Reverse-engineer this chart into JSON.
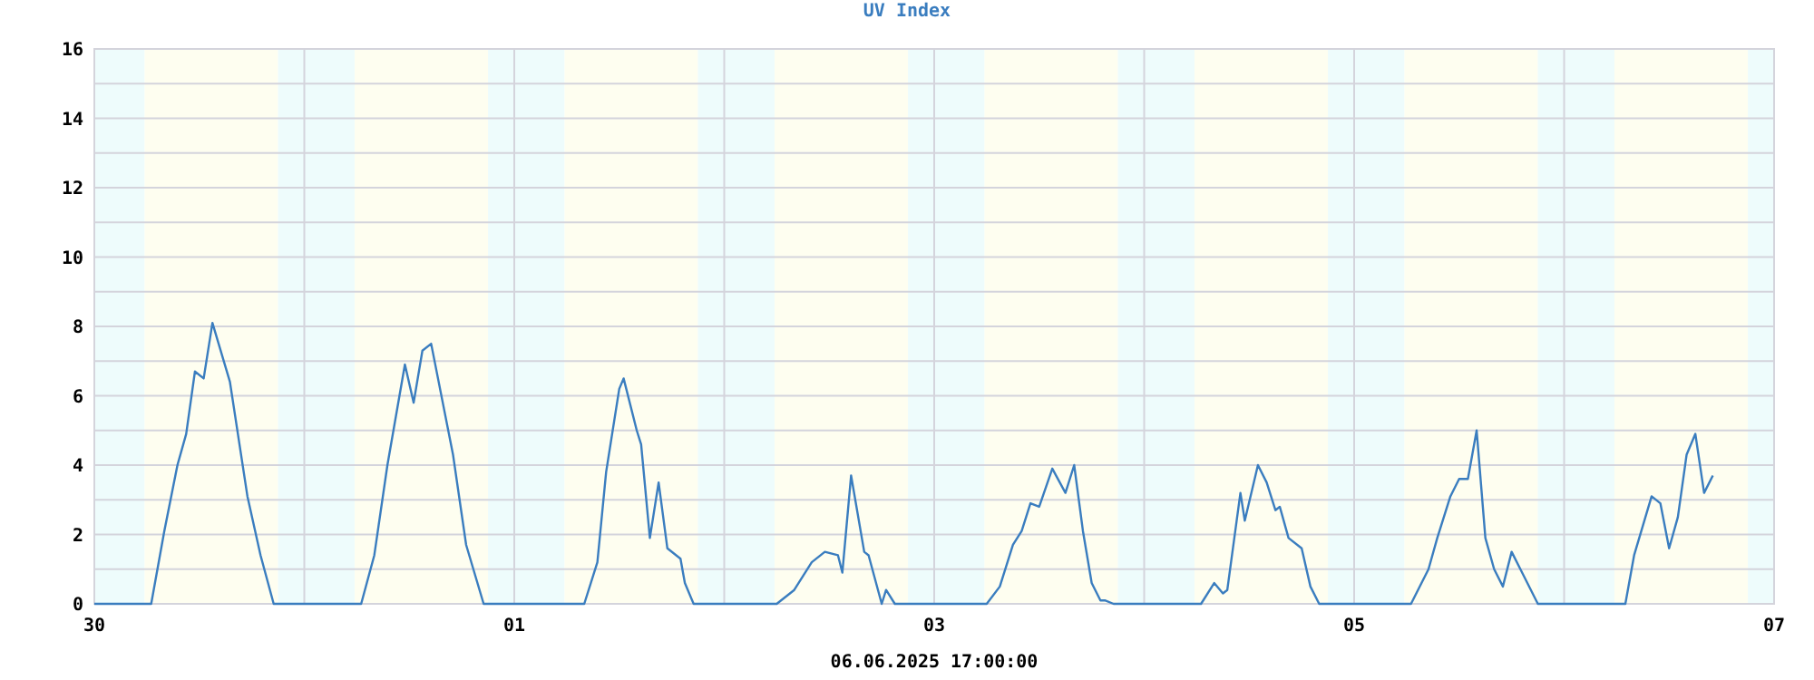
{
  "chart_data": {
    "type": "line",
    "title": "UV Index",
    "annotations": [
      "06.06.2025 17:00:00"
    ],
    "x": [
      "2025-05-30T00:00",
      "2025-05-30T06:30",
      "2025-05-30T08:00",
      "2025-05-30T09:30",
      "2025-05-30T10:30",
      "2025-05-30T11:30",
      "2025-05-30T12:30",
      "2025-05-30T13:30",
      "2025-05-30T15:30",
      "2025-05-30T17:30",
      "2025-05-30T19:00",
      "2025-05-30T20:30",
      "2025-05-31T06:30",
      "2025-05-31T08:00",
      "2025-05-31T09:30",
      "2025-05-31T11:30",
      "2025-05-31T12:30",
      "2025-05-31T13:30",
      "2025-05-31T14:30",
      "2025-05-31T17:00",
      "2025-05-31T18:30",
      "2025-05-31T20:30",
      "2025-06-01T08:00",
      "2025-06-01T09:30",
      "2025-06-01T10:30",
      "2025-06-01T12:00",
      "2025-06-01T12:30",
      "2025-06-01T14:00",
      "2025-06-01T14:30",
      "2025-06-01T15:30",
      "2025-06-01T16:30",
      "2025-06-01T17:30",
      "2025-06-01T19:00",
      "2025-06-01T19:30",
      "2025-06-01T20:30",
      "2025-06-02T06:00",
      "2025-06-02T08:00",
      "2025-06-02T10:00",
      "2025-06-02T11:30",
      "2025-06-02T13:00",
      "2025-06-02T13:30",
      "2025-06-02T14:30",
      "2025-06-02T16:00",
      "2025-06-02T16:30",
      "2025-06-02T18:00",
      "2025-06-02T18:30",
      "2025-06-02T19:30",
      "2025-06-03T06:00",
      "2025-06-03T07:30",
      "2025-06-03T09:00",
      "2025-06-03T10:00",
      "2025-06-03T11:00",
      "2025-06-03T12:00",
      "2025-06-03T13:30",
      "2025-06-03T15:00",
      "2025-06-03T16:00",
      "2025-06-03T17:00",
      "2025-06-03T18:00",
      "2025-06-03T19:00",
      "2025-06-03T19:30",
      "2025-06-03T20:30",
      "2025-06-04T06:30",
      "2025-06-04T08:00",
      "2025-06-04T09:00",
      "2025-06-04T09:30",
      "2025-06-04T11:00",
      "2025-06-04T11:30",
      "2025-06-04T13:00",
      "2025-06-04T14:00",
      "2025-06-04T15:00",
      "2025-06-04T15:30",
      "2025-06-04T16:30",
      "2025-06-04T18:00",
      "2025-06-04T19:00",
      "2025-06-04T20:00",
      "2025-06-05T06:30",
      "2025-06-05T08:30",
      "2025-06-05T09:30",
      "2025-06-05T11:00",
      "2025-06-05T12:00",
      "2025-06-05T13:00",
      "2025-06-05T14:00",
      "2025-06-05T15:00",
      "2025-06-05T16:00",
      "2025-06-05T17:00",
      "2025-06-05T18:00",
      "2025-06-05T19:00",
      "2025-06-05T21:00",
      "2025-06-06T07:00",
      "2025-06-06T08:00",
      "2025-06-06T10:00",
      "2025-06-06T11:00",
      "2025-06-06T12:00",
      "2025-06-06T13:00",
      "2025-06-06T14:00",
      "2025-06-06T15:00",
      "2025-06-06T16:00",
      "2025-06-06T17:00"
    ],
    "series": [
      {
        "color": "#3a7dbf",
        "values": [
          0,
          0,
          2.1,
          4.0,
          4.9,
          6.7,
          6.5,
          8.1,
          6.4,
          3.1,
          1.4,
          0,
          0,
          1.4,
          4.0,
          6.9,
          5.8,
          7.3,
          7.5,
          4.3,
          1.7,
          0,
          0,
          1.2,
          3.8,
          6.2,
          6.5,
          5.0,
          4.6,
          1.9,
          3.5,
          1.6,
          1.3,
          0.6,
          0,
          0,
          0.4,
          1.2,
          1.5,
          1.4,
          0.9,
          3.7,
          1.5,
          1.4,
          0,
          0.4,
          0,
          0,
          0.5,
          1.7,
          2.1,
          2.9,
          2.8,
          3.9,
          3.2,
          4.0,
          2.1,
          0.6,
          0.1,
          0.1,
          0,
          0,
          0.6,
          0.3,
          0.4,
          3.2,
          2.4,
          4.0,
          3.5,
          2.7,
          2.8,
          1.9,
          1.6,
          0.5,
          0,
          0,
          1.0,
          1.9,
          3.1,
          3.6,
          3.6,
          5.0,
          1.9,
          1.0,
          0.5,
          1.5,
          1.0,
          0,
          0,
          1.4,
          3.1,
          2.9,
          1.6,
          2.5,
          4.3,
          4.9,
          3.2,
          3.7
        ]
      }
    ],
    "xlim": [
      "2025-05-30",
      "2025-06-07"
    ],
    "xticks": [
      {
        "value": "2025-05-30",
        "label": "30"
      },
      {
        "value": "2025-05-31",
        "label": null
      },
      {
        "value": "2025-06-01",
        "label": "01"
      },
      {
        "value": "2025-06-02",
        "label": null
      },
      {
        "value": "2025-06-03",
        "label": "03"
      },
      {
        "value": "2025-06-04",
        "label": null
      },
      {
        "value": "2025-06-05",
        "label": "05"
      },
      {
        "value": "2025-06-06",
        "label": null
      },
      {
        "value": "2025-06-07",
        "label": "07"
      }
    ],
    "ylim": [
      0,
      16
    ],
    "yticks": [
      0,
      {
        "value": 1,
        "label": null
      },
      2,
      {
        "value": 3,
        "label": null
      },
      4,
      {
        "value": 5,
        "label": null
      },
      6,
      {
        "value": 7,
        "label": null
      },
      8,
      {
        "value": 9,
        "label": null
      },
      10,
      {
        "value": 11,
        "label": null
      },
      12,
      {
        "value": 13,
        "label": null
      },
      14,
      {
        "value": 15,
        "label": null
      },
      16
    ],
    "grid": true,
    "marker": "none",
    "line_style": "solid",
    "bands": [
      {
        "axis": "x",
        "from": "2025-05-30T00:00",
        "to": "2025-05-30T05:45",
        "color": "#eefcfc"
      },
      {
        "axis": "x",
        "from": "2025-05-30T05:45",
        "to": "2025-05-30T21:00",
        "color": "#fefef0"
      },
      {
        "axis": "x",
        "from": "2025-05-30T21:00",
        "to": "2025-05-31T05:45",
        "color": "#eefcfc"
      },
      {
        "axis": "x",
        "from": "2025-05-31T05:45",
        "to": "2025-05-31T21:00",
        "color": "#fefef0"
      },
      {
        "axis": "x",
        "from": "2025-05-31T21:00",
        "to": "2025-06-01T05:45",
        "color": "#eefcfc"
      },
      {
        "axis": "x",
        "from": "2025-06-01T05:45",
        "to": "2025-06-01T21:00",
        "color": "#fefef0"
      },
      {
        "axis": "x",
        "from": "2025-06-01T21:00",
        "to": "2025-06-02T05:45",
        "color": "#eefcfc"
      },
      {
        "axis": "x",
        "from": "2025-06-02T05:45",
        "to": "2025-06-02T21:00",
        "color": "#fefef0"
      },
      {
        "axis": "x",
        "from": "2025-06-02T21:00",
        "to": "2025-06-03T05:45",
        "color": "#eefcfc"
      },
      {
        "axis": "x",
        "from": "2025-06-03T05:45",
        "to": "2025-06-03T21:00",
        "color": "#fefef0"
      },
      {
        "axis": "x",
        "from": "2025-06-03T21:00",
        "to": "2025-06-04T05:45",
        "color": "#eefcfc"
      },
      {
        "axis": "x",
        "from": "2025-06-04T05:45",
        "to": "2025-06-04T21:00",
        "color": "#fefef0"
      },
      {
        "axis": "x",
        "from": "2025-06-04T21:00",
        "to": "2025-06-05T05:45",
        "color": "#eefcfc"
      },
      {
        "axis": "x",
        "from": "2025-06-05T05:45",
        "to": "2025-06-05T21:00",
        "color": "#fefef0"
      },
      {
        "axis": "x",
        "from": "2025-06-05T21:00",
        "to": "2025-06-06T05:45",
        "color": "#eefcfc"
      },
      {
        "axis": "x",
        "from": "2025-06-06T05:45",
        "to": "2025-06-06T21:00",
        "color": "#fefef0"
      },
      {
        "axis": "x",
        "from": "2025-06-06T21:00",
        "to": "2025-06-07T00:00",
        "color": "#eefcfc"
      }
    ]
  }
}
